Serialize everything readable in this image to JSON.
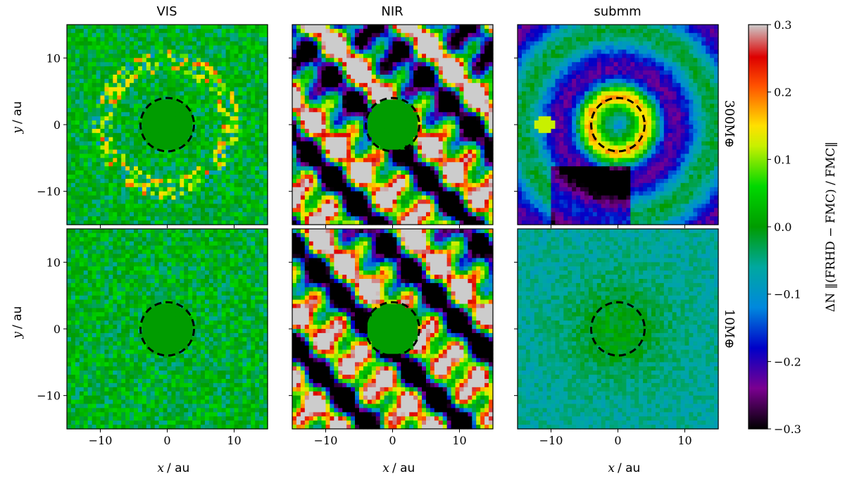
{
  "chart_data": {
    "type": "heatmap",
    "columns": [
      "VIS",
      "NIR",
      "submm"
    ],
    "rows": [
      "300M⊕",
      "10M⊕"
    ],
    "xlabel": {
      "symbol": "x",
      "unit": "au"
    },
    "ylabel": {
      "symbol": "y",
      "unit": "au"
    },
    "xlim": [
      -15,
      15
    ],
    "ylim": [
      -15,
      15
    ],
    "xticks": [
      -10,
      0,
      10
    ],
    "yticks": [
      -10,
      0,
      10
    ],
    "xtick_labels": [
      "−10",
      "0",
      "10"
    ],
    "ytick_labels": [
      "−10",
      "0",
      "10"
    ],
    "circle": {
      "center": [
        0,
        0
      ],
      "radius_au": 4,
      "style": "dashed",
      "color": "#000000"
    },
    "colorbar": {
      "range": [
        -0.3,
        0.3
      ],
      "ticks": [
        0.3,
        0.2,
        0.1,
        0.0,
        -0.1,
        -0.2,
        -0.3
      ],
      "tick_labels": [
        "0.3",
        "0.2",
        "0.1",
        "0.0",
        "−0.1",
        "−0.2",
        "−0.3"
      ],
      "label": "ΔN ‖(FRHD − FMC) / FMC‖",
      "colormap": "nipy_spectral"
    },
    "panels_mean_level": [
      [
        0.0,
        0.06,
        -0.12
      ],
      [
        0.0,
        0.08,
        -0.06
      ]
    ]
  }
}
